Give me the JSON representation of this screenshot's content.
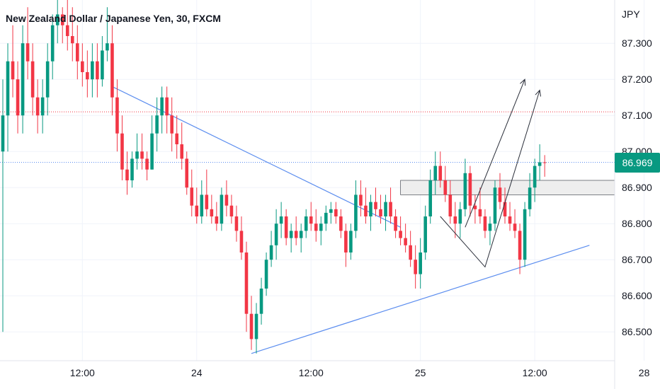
{
  "header": {
    "title": "New Zealand Dollar / Japanese Yen, 30, FXCM",
    "currency": "JPY"
  },
  "current_price": "86.969",
  "colors": {
    "up": "#089981",
    "down": "#f23645",
    "trendline": "#5b8def",
    "arrow": "#2a2e39",
    "badge": "#089981",
    "hline_red": "#f23645",
    "hline_blue": "#5b8def",
    "zone": "#eeeeee"
  },
  "chart_data": {
    "type": "candlestick",
    "symbol": "NZDJPY",
    "interval": "30",
    "ylim": [
      86.42,
      87.42
    ],
    "y_ticks": [
      "86.500",
      "86.600",
      "86.700",
      "86.800",
      "86.900",
      "87.000",
      "87.100",
      "87.200",
      "87.300"
    ],
    "x_ticks": [
      "12:00",
      "24",
      "12:00",
      "25",
      "12:00",
      "28"
    ],
    "x_tick_bar_index": [
      16,
      39,
      62,
      84,
      107,
      129
    ],
    "reference_lines": {
      "red_dotted": 87.11,
      "blue_dotted": 86.97
    },
    "zone": {
      "high": 86.92,
      "low": 86.88
    },
    "candles": [
      [
        87.0,
        87.2,
        86.5,
        87.1
      ],
      [
        87.1,
        87.3,
        87.0,
        87.25
      ],
      [
        87.25,
        87.35,
        87.15,
        87.2
      ],
      [
        87.2,
        87.25,
        87.05,
        87.1
      ],
      [
        87.1,
        87.35,
        87.05,
        87.3
      ],
      [
        87.3,
        87.4,
        87.2,
        87.25
      ],
      [
        87.25,
        87.3,
        87.1,
        87.15
      ],
      [
        87.15,
        87.2,
        87.05,
        87.1
      ],
      [
        87.1,
        87.2,
        87.05,
        87.15
      ],
      [
        87.15,
        87.3,
        87.1,
        87.25
      ],
      [
        87.25,
        87.38,
        87.2,
        87.35
      ],
      [
        87.35,
        87.42,
        87.3,
        87.38
      ],
      [
        87.38,
        87.4,
        87.3,
        87.35
      ],
      [
        87.35,
        87.42,
        87.28,
        87.32
      ],
      [
        87.32,
        87.4,
        87.25,
        87.3
      ],
      [
        87.3,
        87.35,
        87.2,
        87.25
      ],
      [
        87.25,
        87.3,
        87.18,
        87.22
      ],
      [
        87.22,
        87.28,
        87.15,
        87.2
      ],
      [
        87.2,
        87.3,
        87.15,
        87.25
      ],
      [
        87.25,
        87.3,
        87.15,
        87.2
      ],
      [
        87.2,
        87.32,
        87.18,
        87.28
      ],
      [
        87.28,
        87.4,
        87.25,
        87.3
      ],
      [
        87.3,
        87.35,
        87.1,
        87.15
      ],
      [
        87.15,
        87.2,
        87.0,
        87.05
      ],
      [
        87.05,
        87.1,
        86.92,
        86.95
      ],
      [
        86.95,
        87.0,
        86.88,
        86.92
      ],
      [
        86.92,
        87.0,
        86.9,
        86.98
      ],
      [
        86.98,
        87.05,
        86.95,
        87.0
      ],
      [
        87.0,
        87.05,
        86.95,
        86.98
      ],
      [
        86.98,
        87.0,
        86.92,
        86.95
      ],
      [
        86.95,
        87.1,
        86.95,
        87.05
      ],
      [
        87.05,
        87.15,
        87.0,
        87.1
      ],
      [
        87.1,
        87.18,
        87.05,
        87.15
      ],
      [
        87.15,
        87.18,
        87.05,
        87.1
      ],
      [
        87.1,
        87.15,
        87.0,
        87.05
      ],
      [
        87.05,
        87.1,
        86.98,
        87.02
      ],
      [
        87.02,
        87.08,
        86.95,
        86.98
      ],
      [
        86.98,
        87.0,
        86.88,
        86.9
      ],
      [
        86.9,
        86.95,
        86.82,
        86.85
      ],
      [
        86.85,
        86.9,
        86.8,
        86.82
      ],
      [
        86.82,
        86.92,
        86.8,
        86.88
      ],
      [
        86.88,
        86.95,
        86.82,
        86.84
      ],
      [
        86.84,
        86.88,
        86.8,
        86.82
      ],
      [
        86.82,
        86.86,
        86.78,
        86.8
      ],
      [
        86.8,
        86.9,
        86.78,
        86.88
      ],
      [
        86.88,
        86.92,
        86.82,
        86.85
      ],
      [
        86.85,
        86.88,
        86.8,
        86.82
      ],
      [
        86.82,
        86.85,
        86.75,
        86.78
      ],
      [
        86.78,
        86.82,
        86.7,
        86.72
      ],
      [
        86.72,
        86.75,
        86.5,
        86.55
      ],
      [
        86.55,
        86.6,
        86.45,
        86.48
      ],
      [
        86.48,
        86.58,
        86.44,
        86.55
      ],
      [
        86.55,
        86.65,
        86.52,
        86.62
      ],
      [
        86.62,
        86.72,
        86.6,
        86.7
      ],
      [
        86.7,
        86.78,
        86.68,
        86.74
      ],
      [
        86.74,
        86.84,
        86.7,
        86.8
      ],
      [
        86.8,
        86.86,
        86.76,
        86.82
      ],
      [
        86.82,
        86.84,
        86.74,
        86.76
      ],
      [
        86.76,
        86.8,
        86.72,
        86.78
      ],
      [
        86.78,
        86.82,
        86.74,
        86.76
      ],
      [
        86.76,
        86.8,
        86.72,
        86.78
      ],
      [
        86.78,
        86.84,
        86.76,
        86.82
      ],
      [
        86.82,
        86.86,
        86.78,
        86.8
      ],
      [
        86.8,
        86.84,
        86.75,
        86.78
      ],
      [
        86.78,
        86.82,
        86.74,
        86.8
      ],
      [
        86.8,
        86.85,
        86.78,
        86.83
      ],
      [
        86.83,
        86.86,
        86.8,
        86.84
      ],
      [
        86.84,
        86.86,
        86.8,
        86.82
      ],
      [
        86.82,
        86.84,
        86.76,
        86.78
      ],
      [
        86.78,
        86.8,
        86.68,
        86.72
      ],
      [
        86.72,
        86.8,
        86.7,
        86.78
      ],
      [
        86.78,
        86.92,
        86.76,
        86.88
      ],
      [
        86.88,
        86.92,
        86.82,
        86.85
      ],
      [
        86.85,
        86.9,
        86.8,
        86.82
      ],
      [
        86.82,
        86.88,
        86.78,
        86.86
      ],
      [
        86.86,
        86.9,
        86.82,
        86.84
      ],
      [
        86.84,
        86.88,
        86.8,
        86.82
      ],
      [
        86.82,
        86.88,
        86.78,
        86.86
      ],
      [
        86.86,
        86.9,
        86.8,
        86.82
      ],
      [
        86.82,
        86.84,
        86.76,
        86.78
      ],
      [
        86.78,
        86.82,
        86.74,
        86.76
      ],
      [
        86.76,
        86.8,
        86.72,
        86.74
      ],
      [
        86.74,
        86.78,
        86.68,
        86.7
      ],
      [
        86.7,
        86.74,
        86.62,
        86.66
      ],
      [
        86.66,
        86.76,
        86.62,
        86.72
      ],
      [
        86.72,
        86.85,
        86.7,
        86.82
      ],
      [
        86.82,
        86.95,
        86.8,
        86.92
      ],
      [
        86.92,
        87.0,
        86.88,
        86.96
      ],
      [
        86.96,
        87.0,
        86.9,
        86.92
      ],
      [
        86.92,
        86.96,
        86.86,
        86.88
      ],
      [
        86.88,
        86.92,
        86.8,
        86.82
      ],
      [
        86.82,
        86.86,
        86.76,
        86.8
      ],
      [
        86.8,
        86.86,
        86.76,
        86.84
      ],
      [
        86.84,
        86.98,
        86.82,
        86.94
      ],
      [
        86.94,
        86.96,
        86.82,
        86.85
      ],
      [
        86.85,
        86.88,
        86.8,
        86.84
      ],
      [
        86.84,
        86.9,
        86.8,
        86.82
      ],
      [
        86.82,
        86.84,
        86.76,
        86.78
      ],
      [
        86.78,
        86.82,
        86.74,
        86.8
      ],
      [
        86.8,
        86.92,
        86.78,
        86.9
      ],
      [
        86.9,
        86.94,
        86.84,
        86.86
      ],
      [
        86.86,
        86.9,
        86.8,
        86.82
      ],
      [
        86.82,
        86.86,
        86.78,
        86.8
      ],
      [
        86.8,
        86.84,
        86.76,
        86.78
      ],
      [
        86.78,
        86.8,
        86.66,
        86.7
      ],
      [
        86.7,
        86.86,
        86.68,
        86.84
      ],
      [
        86.84,
        86.94,
        86.82,
        86.9
      ],
      [
        86.9,
        86.98,
        86.86,
        86.96
      ],
      [
        86.96,
        87.02,
        86.92,
        86.97
      ],
      [
        86.97,
        86.99,
        86.93,
        86.969
      ]
    ],
    "trendlines": [
      {
        "from": [
          22,
          87.18
        ],
        "to": [
          80,
          86.79
        ]
      },
      {
        "from": [
          50,
          86.44
        ],
        "to": [
          118,
          86.74
        ]
      }
    ],
    "arrows": [
      {
        "points": [
          [
            88,
            86.82
          ],
          [
            97,
            86.68
          ],
          [
            108,
            87.17
          ]
        ]
      },
      {
        "points": [
          [
            93,
            86.79
          ],
          [
            105,
            87.2
          ]
        ]
      }
    ]
  }
}
